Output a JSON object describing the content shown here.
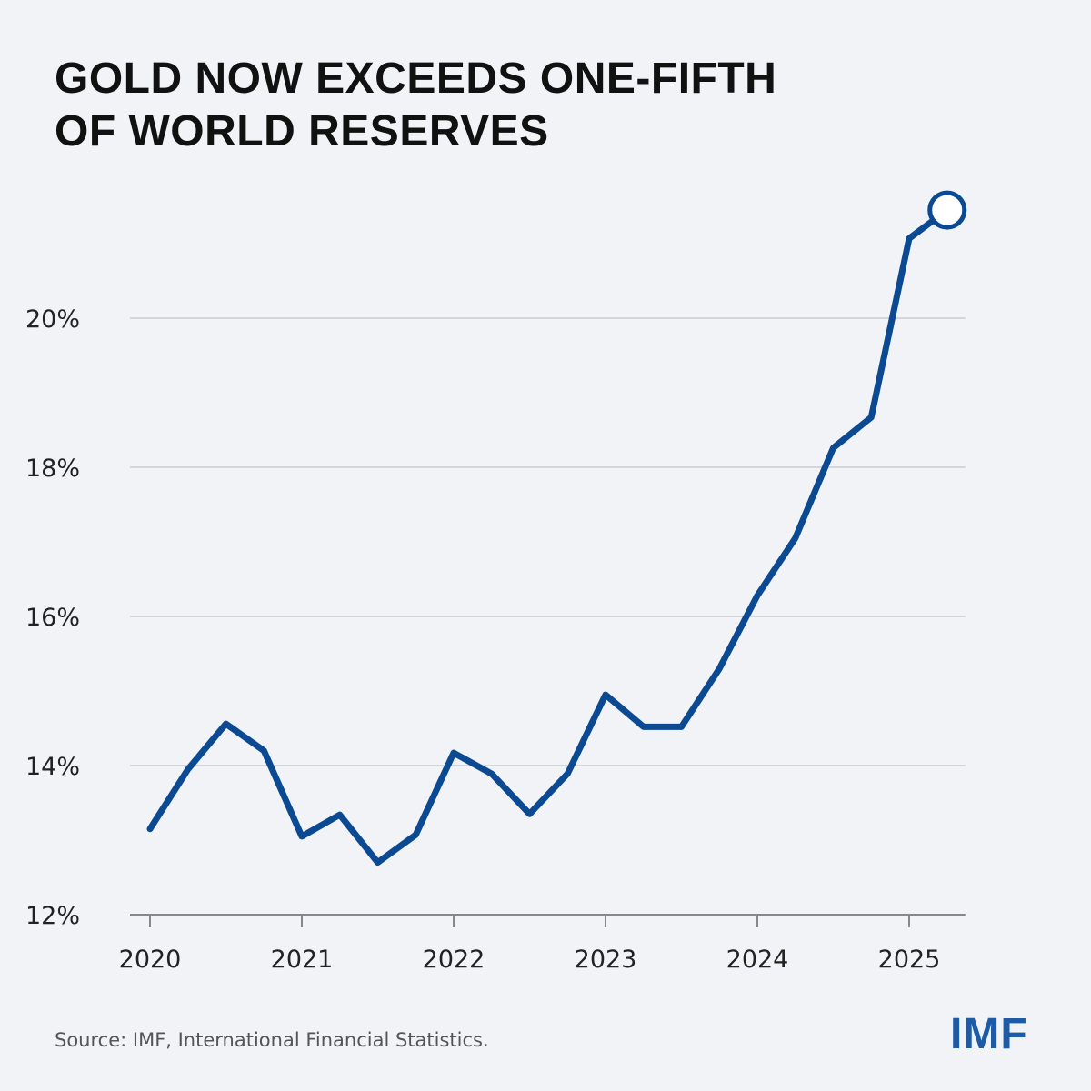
{
  "chart_data": {
    "type": "line",
    "title": [
      "GOLD NOW EXCEEDS ONE-FIFTH",
      "OF WORLD RESERVES"
    ],
    "xlabel": "",
    "ylabel": "",
    "x": [
      2020,
      2020.25,
      2020.5,
      2020.75,
      2021,
      2021.25,
      2021.5,
      2021.75,
      2022,
      2022.25,
      2022.5,
      2022.75,
      2023,
      2023.25,
      2023.5,
      2023.75,
      2024,
      2024.25,
      2024.5,
      2024.75,
      2025,
      2025.25
    ],
    "series": [
      {
        "values": [
          13.15,
          13.95,
          14.56,
          14.2,
          13.05,
          13.34,
          12.7,
          13.07,
          14.17,
          13.89,
          13.35,
          13.89,
          14.95,
          14.52,
          14.52,
          15.3,
          16.28,
          17.05,
          18.26,
          18.67,
          21.07,
          21.45
        ],
        "color": "#0b4a92"
      }
    ],
    "xticks": [
      "2020",
      "2021",
      "2022",
      "2023",
      "2024",
      "2025"
    ],
    "yticks": [
      {
        "value": 12,
        "label": "12%"
      },
      {
        "value": 14,
        "label": "14%"
      },
      {
        "value": 16,
        "label": "16%"
      },
      {
        "value": 18,
        "label": "18%"
      },
      {
        "value": 20,
        "label": "20%"
      }
    ],
    "ylim": [
      12,
      22.2
    ],
    "xlim": [
      2020,
      2025.37
    ],
    "grid": true,
    "last_point_marker": "hollow-circle"
  },
  "source": "Source: IMF, International Financial Statistics.",
  "logo": "IMF"
}
